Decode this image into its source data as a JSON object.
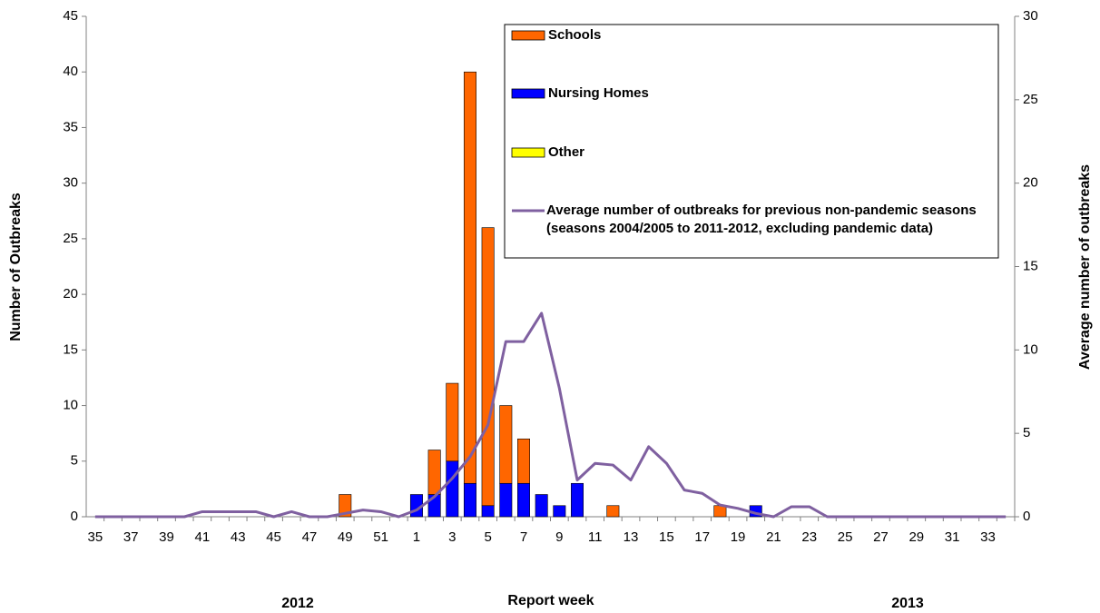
{
  "chart_data": {
    "type": "bar",
    "stacked": true,
    "y_label": "Number of Outbreaks",
    "y2_label": "Average number of outbreaks",
    "x_label": "Report week",
    "annotations": [
      "2012",
      "2013"
    ],
    "categories": [
      "35",
      null,
      "37",
      null,
      "39",
      null,
      "41",
      null,
      "43",
      null,
      "45",
      null,
      "47",
      null,
      "49",
      null,
      "51",
      null,
      "1",
      null,
      "3",
      null,
      "5",
      null,
      "7",
      null,
      "9",
      null,
      "11",
      null,
      "13",
      null,
      "15",
      null,
      "17",
      null,
      "19",
      null,
      "21",
      null,
      "23",
      null,
      "25",
      null,
      "27",
      null,
      "29",
      null,
      "31",
      null,
      "33",
      null
    ],
    "series": [
      {
        "name": "Nursing Homes",
        "color": "#0000ff",
        "values": [
          0,
          0,
          0,
          0,
          0,
          0,
          0,
          0,
          0,
          0,
          0,
          0,
          0,
          0,
          0,
          0,
          0,
          0,
          2,
          2,
          5,
          3,
          1,
          3,
          3,
          2,
          1,
          3,
          0,
          0,
          0,
          0,
          0,
          0,
          0,
          0,
          0,
          1,
          0,
          0,
          0,
          0,
          0,
          0,
          0,
          0,
          0,
          0,
          0,
          0,
          0,
          0
        ]
      },
      {
        "name": "Other",
        "color": "#ffff00",
        "values": [
          0,
          0,
          0,
          0,
          0,
          0,
          0,
          0,
          0,
          0,
          0,
          0,
          0,
          0,
          0,
          0,
          0,
          0,
          0,
          0,
          0,
          0,
          0,
          0,
          0,
          0,
          0,
          0,
          0,
          0,
          0,
          0,
          0,
          0,
          0,
          0,
          0,
          0,
          0,
          0,
          0,
          0,
          0,
          0,
          0,
          0,
          0,
          0,
          0,
          0,
          0,
          0
        ]
      },
      {
        "name": "Schools",
        "color": "#ff6600",
        "values": [
          0,
          0,
          0,
          0,
          0,
          0,
          0,
          0,
          0,
          0,
          0,
          0,
          0,
          0,
          2,
          0,
          0,
          0,
          0,
          4,
          7,
          37,
          25,
          7,
          4,
          0,
          0,
          0,
          0,
          1,
          0,
          0,
          0,
          0,
          0,
          1,
          0,
          0,
          0,
          0,
          0,
          0,
          0,
          0,
          0,
          0,
          0,
          0,
          0,
          0,
          0,
          0
        ]
      },
      {
        "name": "Average number of outbreaks for previous non-pandemic seasons (seasons 2004/2005 to 2011-2012, excluding pandemic data)",
        "color": "#7f60a0",
        "type": "line",
        "axis": "y2",
        "values": [
          0,
          0,
          0,
          0,
          0,
          0,
          0.3,
          0.3,
          0.3,
          0.3,
          0,
          0.3,
          0,
          0,
          0.2,
          0.4,
          0.3,
          0,
          0.4,
          1.2,
          2.3,
          3.6,
          5.5,
          10.5,
          10.5,
          12.2,
          7.7,
          2.2,
          3.2,
          3.1,
          2.2,
          4.2,
          3.2,
          1.6,
          1.4,
          0.7,
          0.5,
          0.2,
          0,
          0.6,
          0.6,
          0,
          0,
          0,
          0,
          0,
          0,
          0,
          0,
          0,
          0,
          0
        ]
      }
    ],
    "legend_order": [
      2,
      0,
      1,
      3
    ],
    "ylim": [
      0,
      45
    ],
    "yticks": [
      0,
      5,
      10,
      15,
      20,
      25,
      30,
      35,
      40,
      45
    ],
    "y2lim": [
      0,
      30
    ],
    "y2ticks": [
      0,
      5,
      10,
      15,
      20,
      25,
      30
    ]
  }
}
